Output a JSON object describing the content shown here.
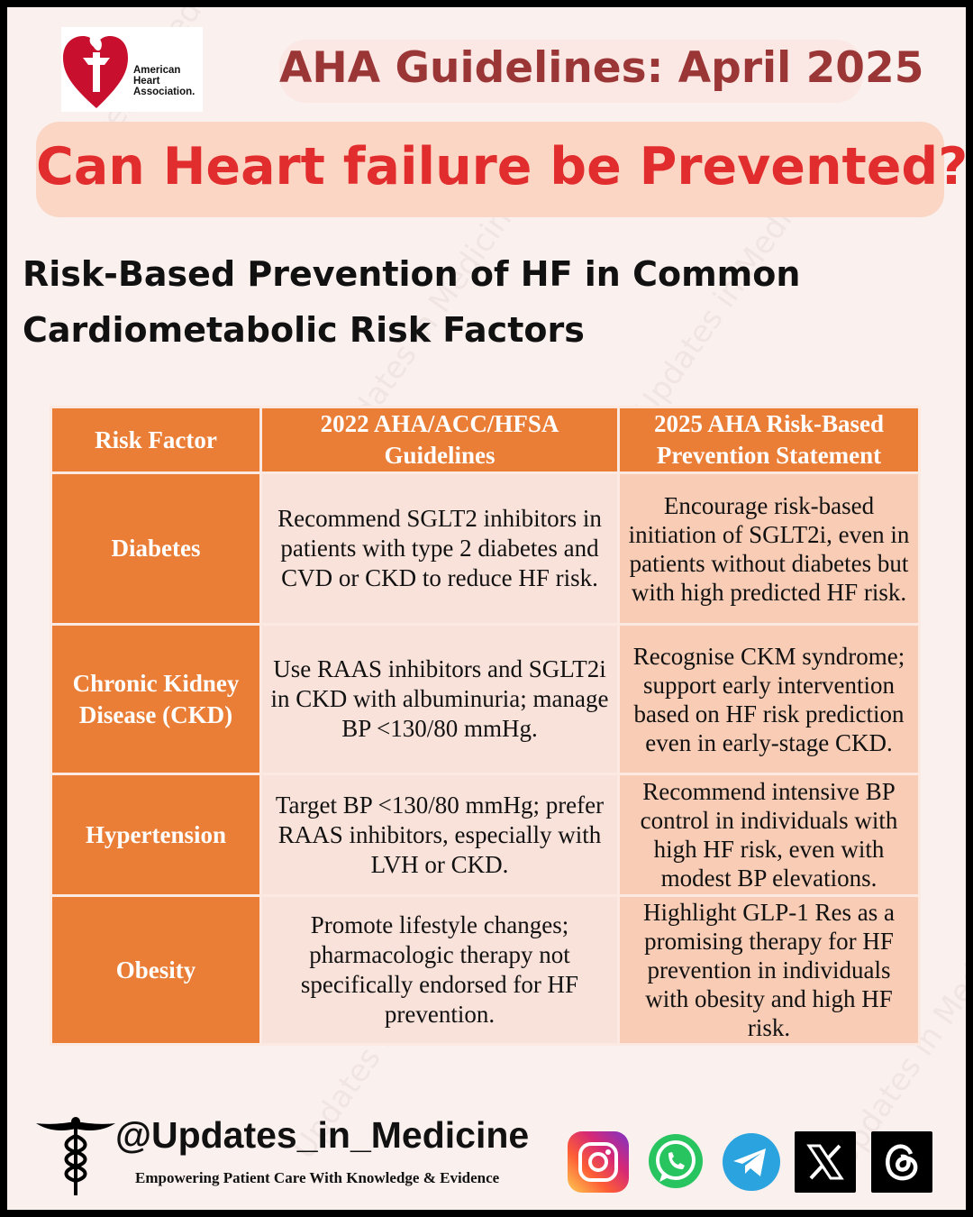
{
  "logo": {
    "line1": "American",
    "line2": "Heart",
    "line3": "Association."
  },
  "header": {
    "top_title": "AHA Guidelines: April 2025",
    "banner": "Can Heart failure be Prevented?",
    "section_line1": "Risk-Based Prevention of HF in Common",
    "section_line2": "Cardiometabolic Risk Factors"
  },
  "table": {
    "headers": [
      "Risk Factor",
      "2022 AHA/ACC/HFSA Guidelines",
      "2025 AHA Risk-Based Prevention Statement"
    ],
    "rows": [
      {
        "factor": "Diabetes",
        "g2022": "Recommend SGLT2 inhibitors in patients with type 2 diabetes and CVD or CKD to reduce HF risk.",
        "s2025": "Encourage risk-based initiation of SGLT2i, even in patients without diabetes but with high predicted HF risk."
      },
      {
        "factor": "Chronic Kidney Disease (CKD)",
        "g2022": "Use RAAS inhibitors and SGLT2i in CKD with albuminuria; manage BP <130/80 mmHg.",
        "s2025": "Recognise CKM syndrome; support early intervention based on HF risk prediction even in early-stage CKD."
      },
      {
        "factor": "Hypertension",
        "g2022": "Target BP <130/80 mmHg; prefer RAAS inhibitors, especially with LVH or CKD.",
        "s2025": "Recommend intensive BP control in individuals with high HF risk, even with modest BP elevations."
      },
      {
        "factor": "Obesity",
        "g2022": "Promote lifestyle changes; pharmacologic therapy not specifically endorsed for HF prevention.",
        "s2025": "Highlight GLP-1 Res as a promising therapy for HF prevention in individuals with obesity and high HF risk."
      }
    ]
  },
  "footer": {
    "handle": "@Updates_in_Medicine",
    "tagline": "Empowering Patient Care With Knowledge & Evidence",
    "watermark": "Updates in Medicine"
  },
  "icons": {
    "logo": "aha-heart-torch-icon",
    "caduceus": "caduceus-icon",
    "social": [
      "instagram-icon",
      "whatsapp-icon",
      "telegram-icon",
      "x-icon",
      "threads-icon"
    ]
  },
  "colors": {
    "page_bg": "#faf0ee",
    "title_dark_red": "#9b3636",
    "banner_bg": "#fcd6c4",
    "banner_red": "#e12d2d",
    "table_orange": "#ea7e37",
    "cell_light": "#f9e2da",
    "cell_peach": "#f8ccb5"
  }
}
